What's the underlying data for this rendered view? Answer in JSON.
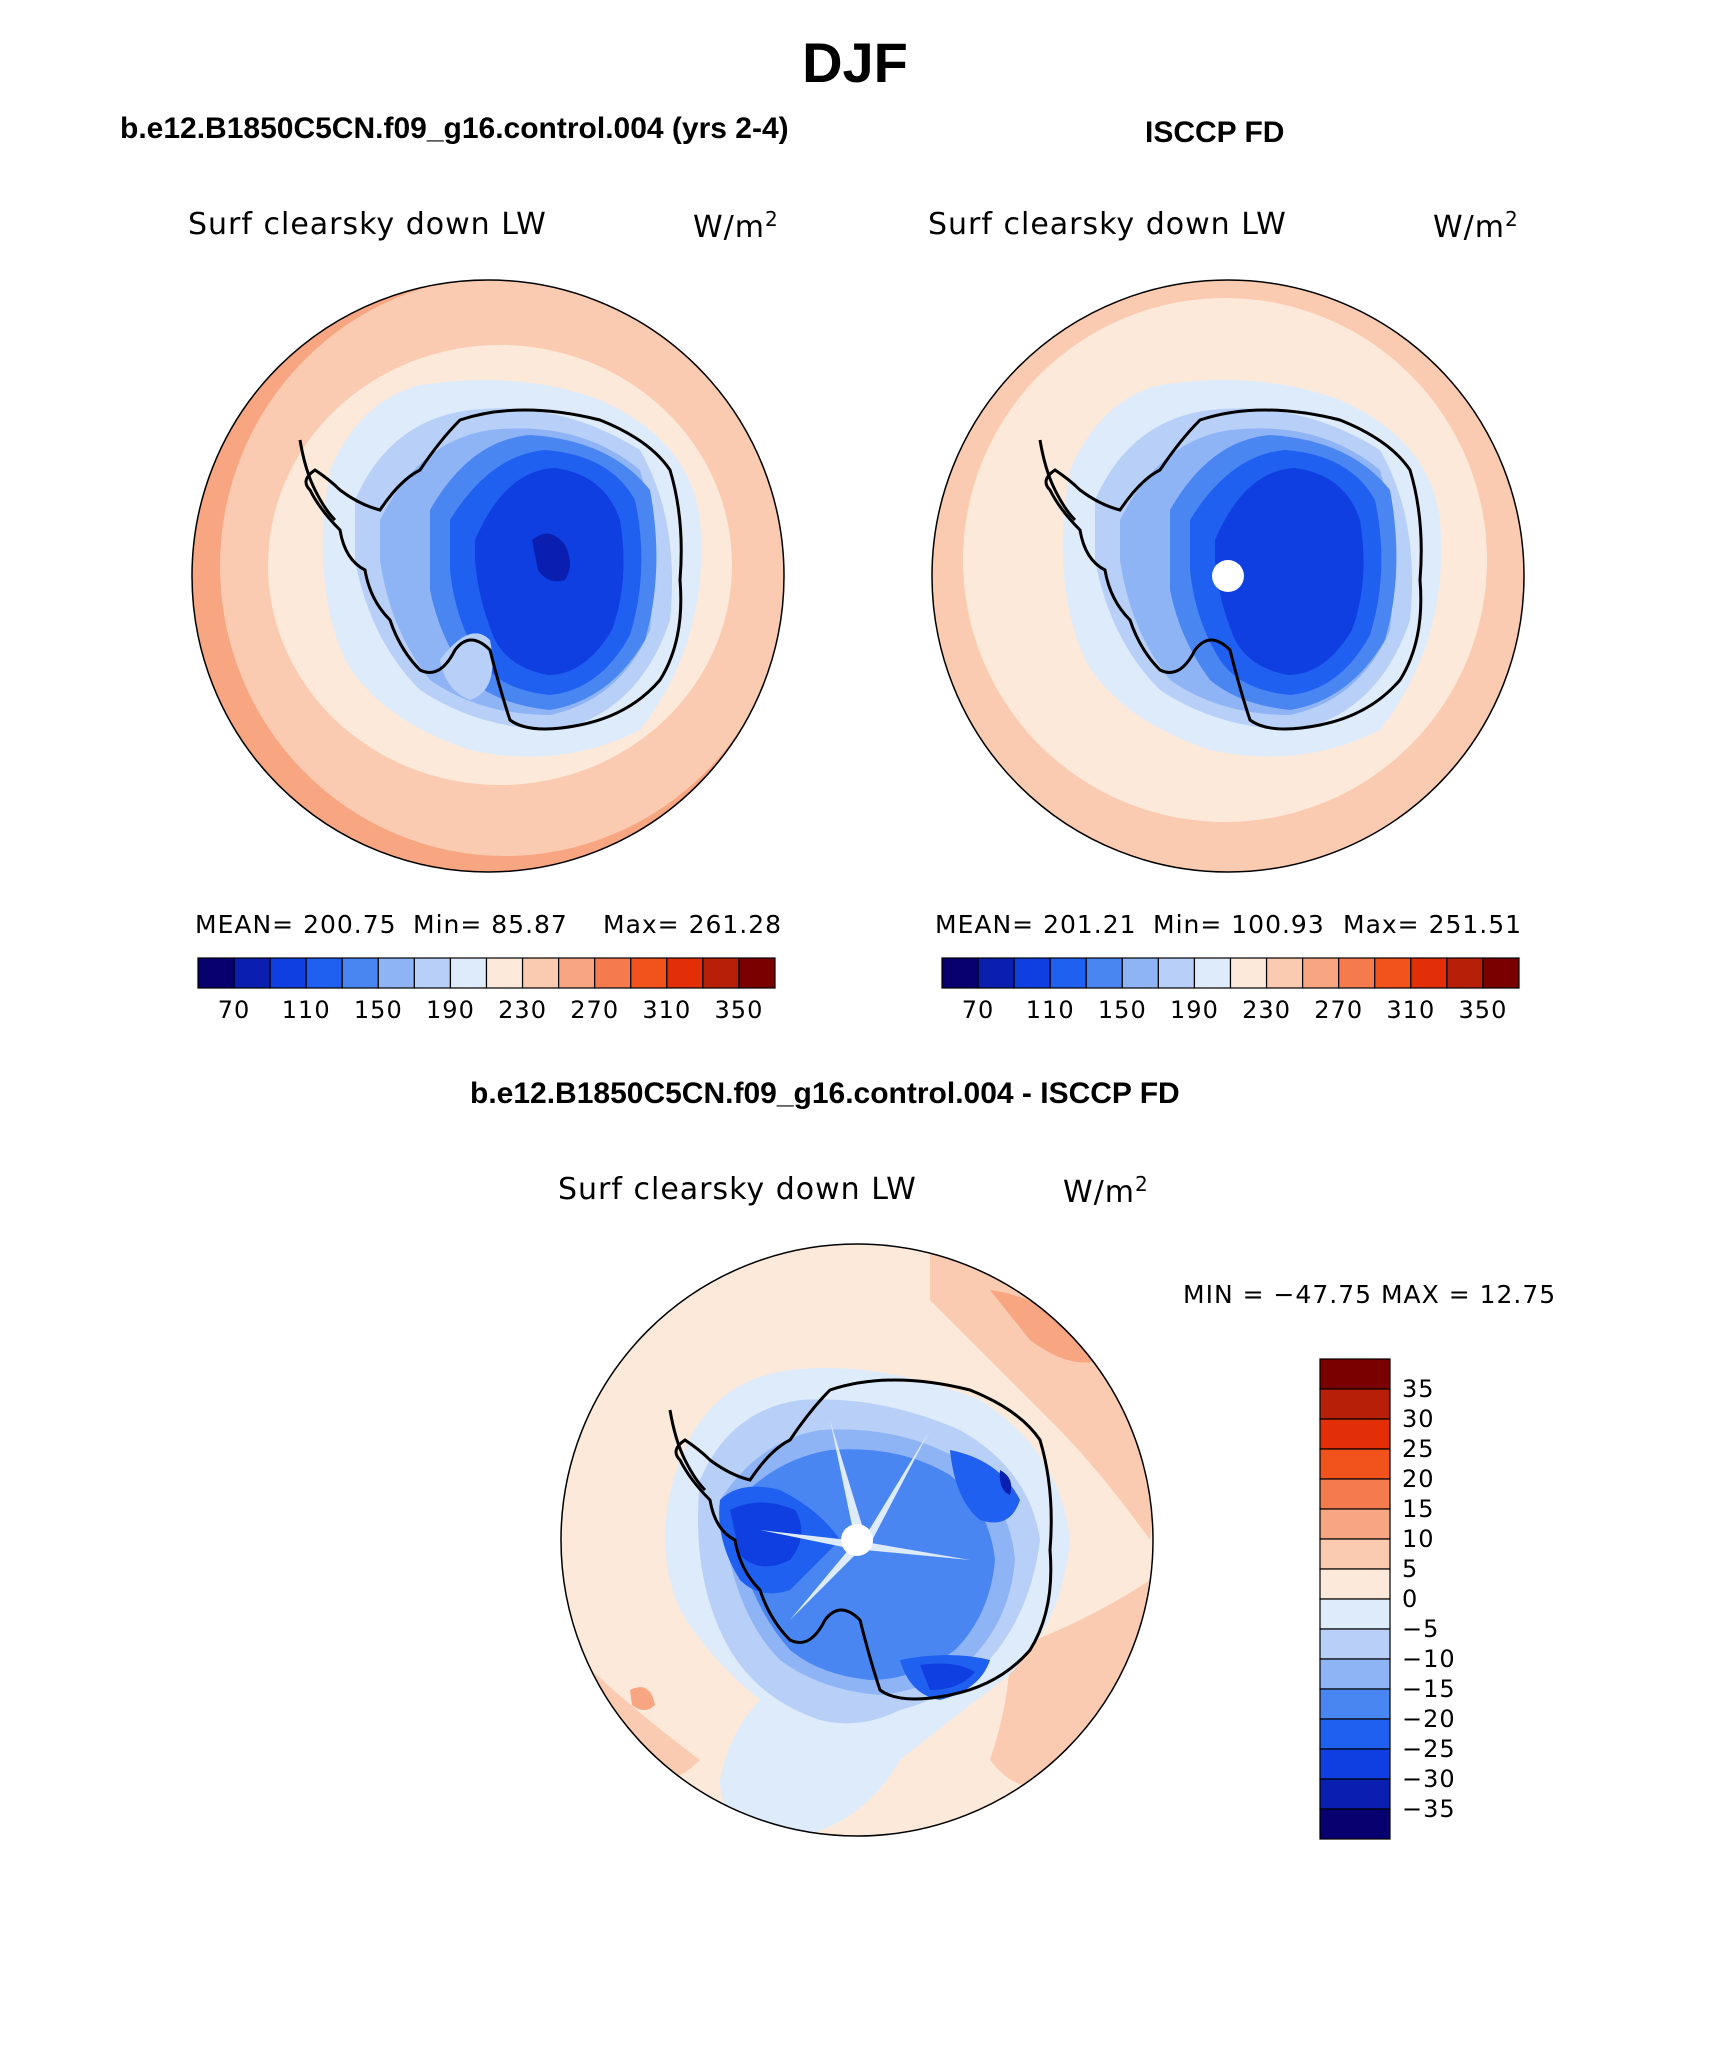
{
  "header": {
    "title": "DJF",
    "left_subtitle": "b.e12.B1850C5CN.f09_g16.control.004 (yrs 2-4)",
    "right_subtitle": "ISCCP FD",
    "diff_subtitle": "b.e12.B1850C5CN.f09_g16.control.004 - ISCCP FD"
  },
  "panels": {
    "model": {
      "variable": "Surf clearsky down LW",
      "units": "W/m",
      "units_sup": "2",
      "mean_label": "MEAN= 200.75",
      "min_label": "Min=   85.87",
      "max_label": "Max= 261.28"
    },
    "obs": {
      "variable": "Surf clearsky down LW",
      "units": "W/m",
      "units_sup": "2",
      "mean_label": "MEAN= 201.21",
      "min_label": "Min= 100.93",
      "max_label": "Max= 251.51"
    },
    "diff": {
      "variable": "Surf clearsky down LW",
      "units": "W/m",
      "units_sup": "2",
      "minmax_label": "MIN = −47.75 MAX =   12.75"
    }
  },
  "colorbars": {
    "horizontal": {
      "colors": [
        "#08006e",
        "#0a1fb0",
        "#0f3fe0",
        "#2060f0",
        "#4a86f2",
        "#8fb4f5",
        "#b8d0f7",
        "#ddebfb",
        "#fde9d9",
        "#fbcbb1",
        "#f8a582",
        "#f57b4e",
        "#f2521c",
        "#e22f08",
        "#b81f08",
        "#7a0000"
      ],
      "ticks": [
        "70",
        "110",
        "150",
        "190",
        "230",
        "270",
        "310",
        "350"
      ]
    },
    "vertical": {
      "colors": [
        "#7a0000",
        "#b81f08",
        "#e22f08",
        "#f2521c",
        "#f57b4e",
        "#f8a582",
        "#fbcbb1",
        "#fde9d9",
        "#ddebfb",
        "#b8d0f7",
        "#8fb4f5",
        "#4a86f2",
        "#2060f0",
        "#0f3fe0",
        "#0a1fb0",
        "#08006e"
      ],
      "ticks": [
        "35",
        "30",
        "25",
        "20",
        "15",
        "10",
        "5",
        "0",
        "−5",
        "−10",
        "−15",
        "−20",
        "−25",
        "−30",
        "−35"
      ]
    }
  },
  "map_colors": {
    "orange_dark": "#f8a582",
    "orange_light": "#fbcbb1",
    "peach": "#fde9d9",
    "ice_lightest": "#ddebfb",
    "ice_light": "#b8d0f7",
    "ice_mid": "#8fb4f5",
    "ice_blue": "#4a86f2",
    "ice_strong": "#2060f0",
    "ice_deep": "#0f3fe0",
    "ice_deepest": "#0a1fb0",
    "ice_core": "#08006e"
  }
}
